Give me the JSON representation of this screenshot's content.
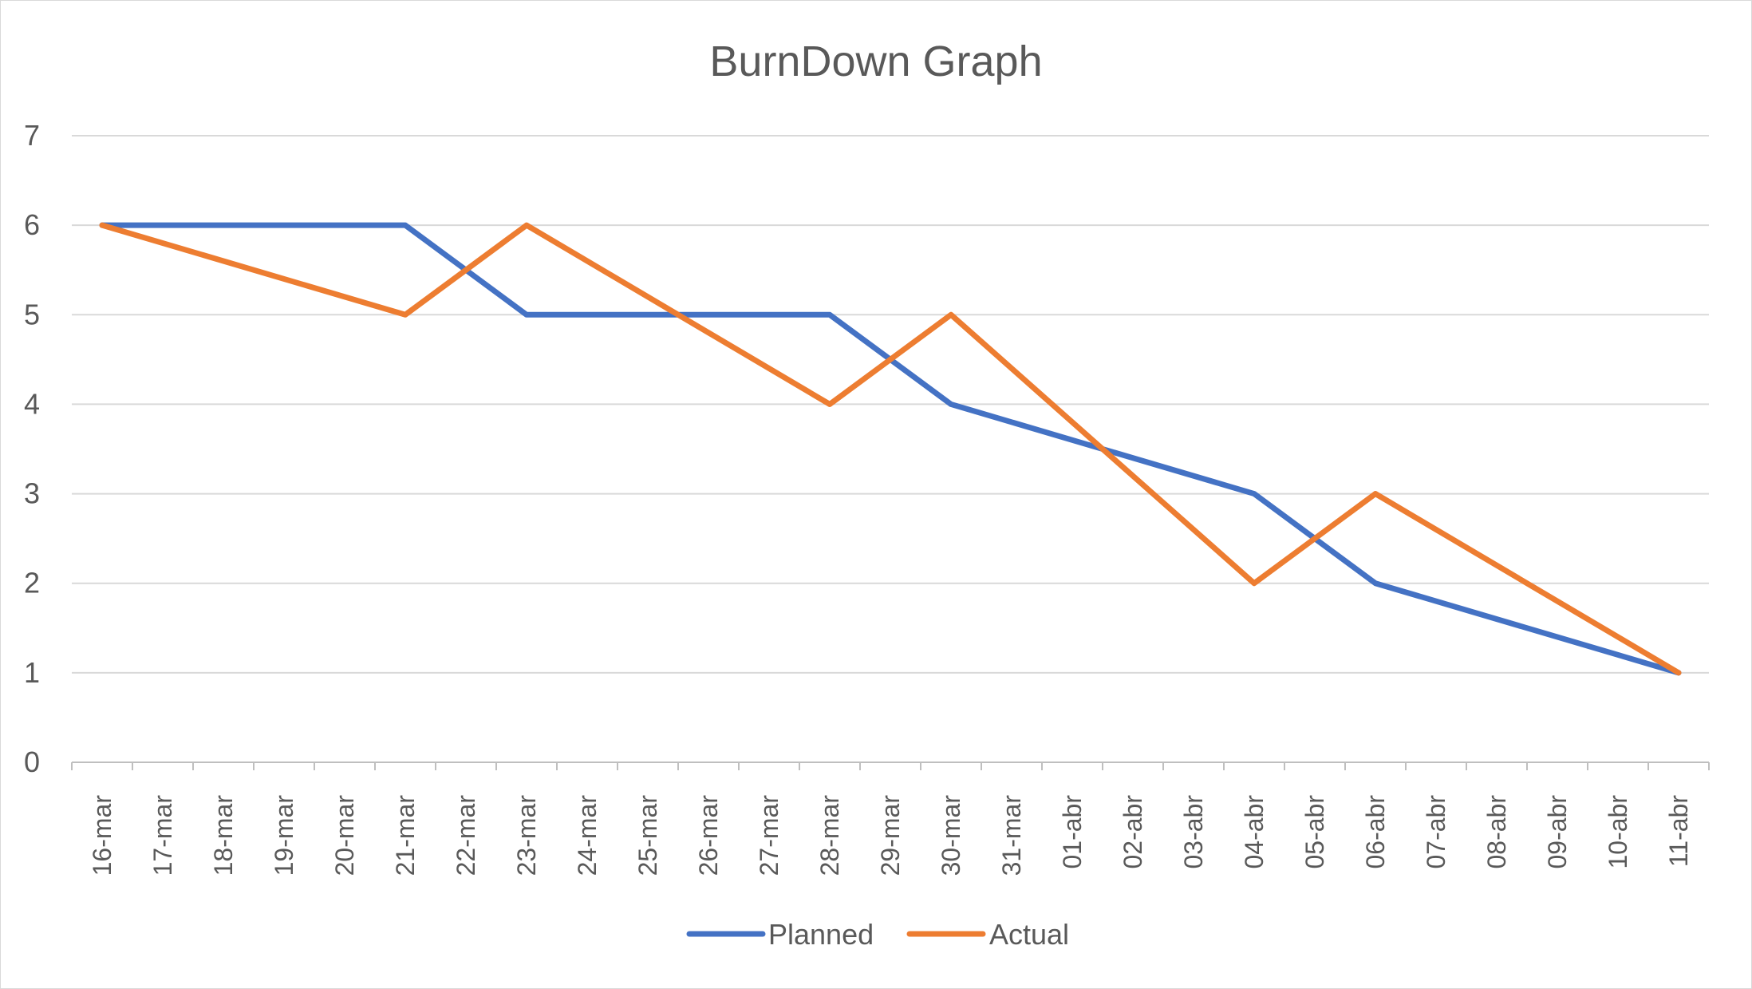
{
  "chart_data": {
    "type": "line",
    "title": "BurnDown Graph",
    "xlabel": "",
    "ylabel": "",
    "ylim": [
      0,
      7
    ],
    "yticks": [
      "0",
      "1",
      "2",
      "3",
      "4",
      "5",
      "6",
      "7"
    ],
    "grid": true,
    "legend_position": "bottom",
    "categories": [
      "16-mar",
      "17-mar",
      "18-mar",
      "19-mar",
      "20-mar",
      "21-mar",
      "22-mar",
      "23-mar",
      "24-mar",
      "25-mar",
      "26-mar",
      "27-mar",
      "28-mar",
      "29-mar",
      "30-mar",
      "31-mar",
      "01-abr",
      "02-abr",
      "03-abr",
      "04-abr",
      "05-abr",
      "06-abr",
      "07-abr",
      "08-abr",
      "09-abr",
      "10-abr",
      "11-abr"
    ],
    "series": [
      {
        "name": "Planned",
        "color": "#4472C4",
        "points": [
          [
            "16-mar",
            6
          ],
          [
            "21-mar",
            6
          ],
          [
            "23-mar",
            5
          ],
          [
            "28-mar",
            5
          ],
          [
            "30-mar",
            4
          ],
          [
            "04-abr",
            3
          ],
          [
            "06-abr",
            2
          ],
          [
            "11-abr",
            1
          ]
        ]
      },
      {
        "name": "Actual",
        "color": "#ED7D31",
        "points": [
          [
            "16-mar",
            6
          ],
          [
            "21-mar",
            5
          ],
          [
            "23-mar",
            6
          ],
          [
            "28-mar",
            4
          ],
          [
            "30-mar",
            5
          ],
          [
            "04-abr",
            2
          ],
          [
            "06-abr",
            3
          ],
          [
            "11-abr",
            1
          ]
        ]
      }
    ]
  }
}
